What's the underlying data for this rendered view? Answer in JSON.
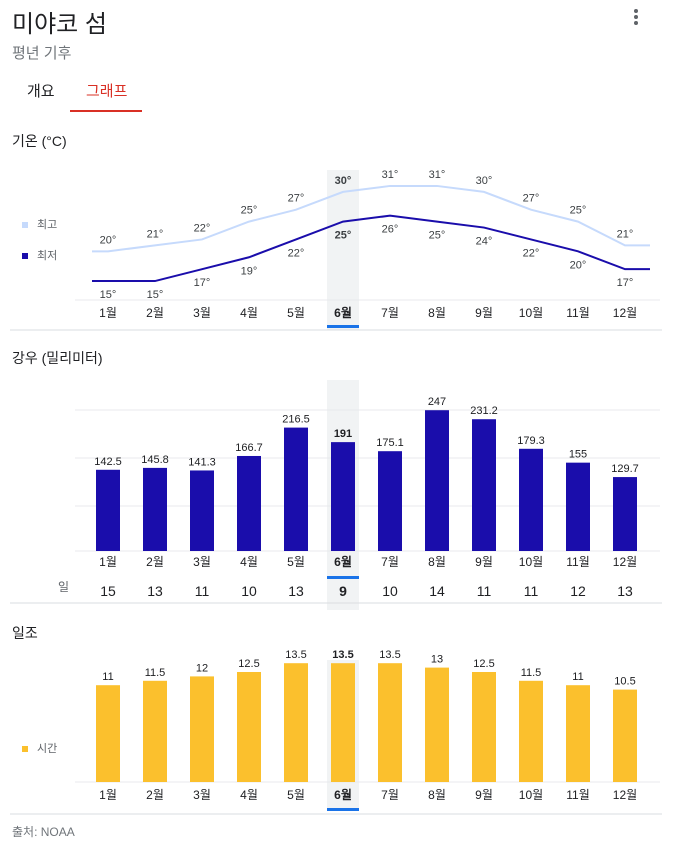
{
  "header": {
    "title": "미야코 섬",
    "subtitle": "평년 기후"
  },
  "tabs": [
    {
      "label": "개요",
      "active": false
    },
    {
      "label": "그래프",
      "active": true
    }
  ],
  "colors": {
    "high": "#c6dafc",
    "low": "#1a0dab",
    "rain_bar": "#1a0dab",
    "sun_bar": "#fbc02d",
    "accent": "#d93025",
    "selected_underline": "#1a73e8"
  },
  "selected_month_index": 5,
  "months": [
    "1월",
    "2월",
    "3월",
    "4월",
    "5월",
    "6월",
    "7월",
    "8월",
    "9월",
    "10월",
    "11월",
    "12월"
  ],
  "chart_data": [
    {
      "type": "line",
      "title": "기온 (°C)",
      "categories": [
        "1월",
        "2월",
        "3월",
        "4월",
        "5월",
        "6월",
        "7월",
        "8월",
        "9월",
        "10월",
        "11월",
        "12월"
      ],
      "series": [
        {
          "name": "최고",
          "values": [
            20,
            21,
            22,
            25,
            27,
            30,
            31,
            31,
            30,
            27,
            25,
            21
          ],
          "labels": [
            "20°",
            "21°",
            "22°",
            "25°",
            "27°",
            "30°",
            "31°",
            "31°",
            "30°",
            "27°",
            "25°",
            "21°"
          ]
        },
        {
          "name": "최저",
          "values": [
            15,
            15,
            17,
            19,
            22,
            25,
            26,
            25,
            24,
            22,
            20,
            17
          ],
          "labels": [
            "15°",
            "15°",
            "17°",
            "19°",
            "22°",
            "25°",
            "26°",
            "25°",
            "24°",
            "22°",
            "20°",
            "17°"
          ]
        }
      ],
      "ylim": [
        14,
        32
      ],
      "legend": "left"
    },
    {
      "type": "bar",
      "title": "강우 (밀리미터)",
      "categories": [
        "1월",
        "2월",
        "3월",
        "4월",
        "5월",
        "6월",
        "7월",
        "8월",
        "9월",
        "10월",
        "11월",
        "12월"
      ],
      "values": [
        142.5,
        145.8,
        141.3,
        166.7,
        216.5,
        191,
        175.1,
        247,
        231.2,
        179.3,
        155,
        129.7
      ],
      "value_labels": [
        "142.5",
        "145.8",
        "141.3",
        "166.7",
        "216.5",
        "191",
        "175.1",
        "247",
        "231.2",
        "179.3",
        "155",
        "129.7"
      ],
      "ylim": [
        0,
        300
      ],
      "days_label": "일",
      "days": [
        "15",
        "13",
        "11",
        "10",
        "13",
        "9",
        "10",
        "14",
        "11",
        "11",
        "12",
        "13"
      ]
    },
    {
      "type": "bar",
      "title": "일조",
      "categories": [
        "1월",
        "2월",
        "3월",
        "4월",
        "5월",
        "6월",
        "7월",
        "8월",
        "9월",
        "10월",
        "11월",
        "12월"
      ],
      "series": [
        {
          "name": "시간",
          "values": [
            11,
            11.5,
            12,
            12.5,
            13.5,
            13.5,
            13.5,
            13,
            12.5,
            11.5,
            11,
            10.5
          ]
        }
      ],
      "value_labels": [
        "11",
        "11.5",
        "12",
        "12.5",
        "13.5",
        "13.5",
        "13.5",
        "13",
        "12.5",
        "11.5",
        "11",
        "10.5"
      ],
      "ylim": [
        0,
        15
      ],
      "legend": "left"
    }
  ],
  "footer": {
    "source": "출처: NOAA"
  }
}
